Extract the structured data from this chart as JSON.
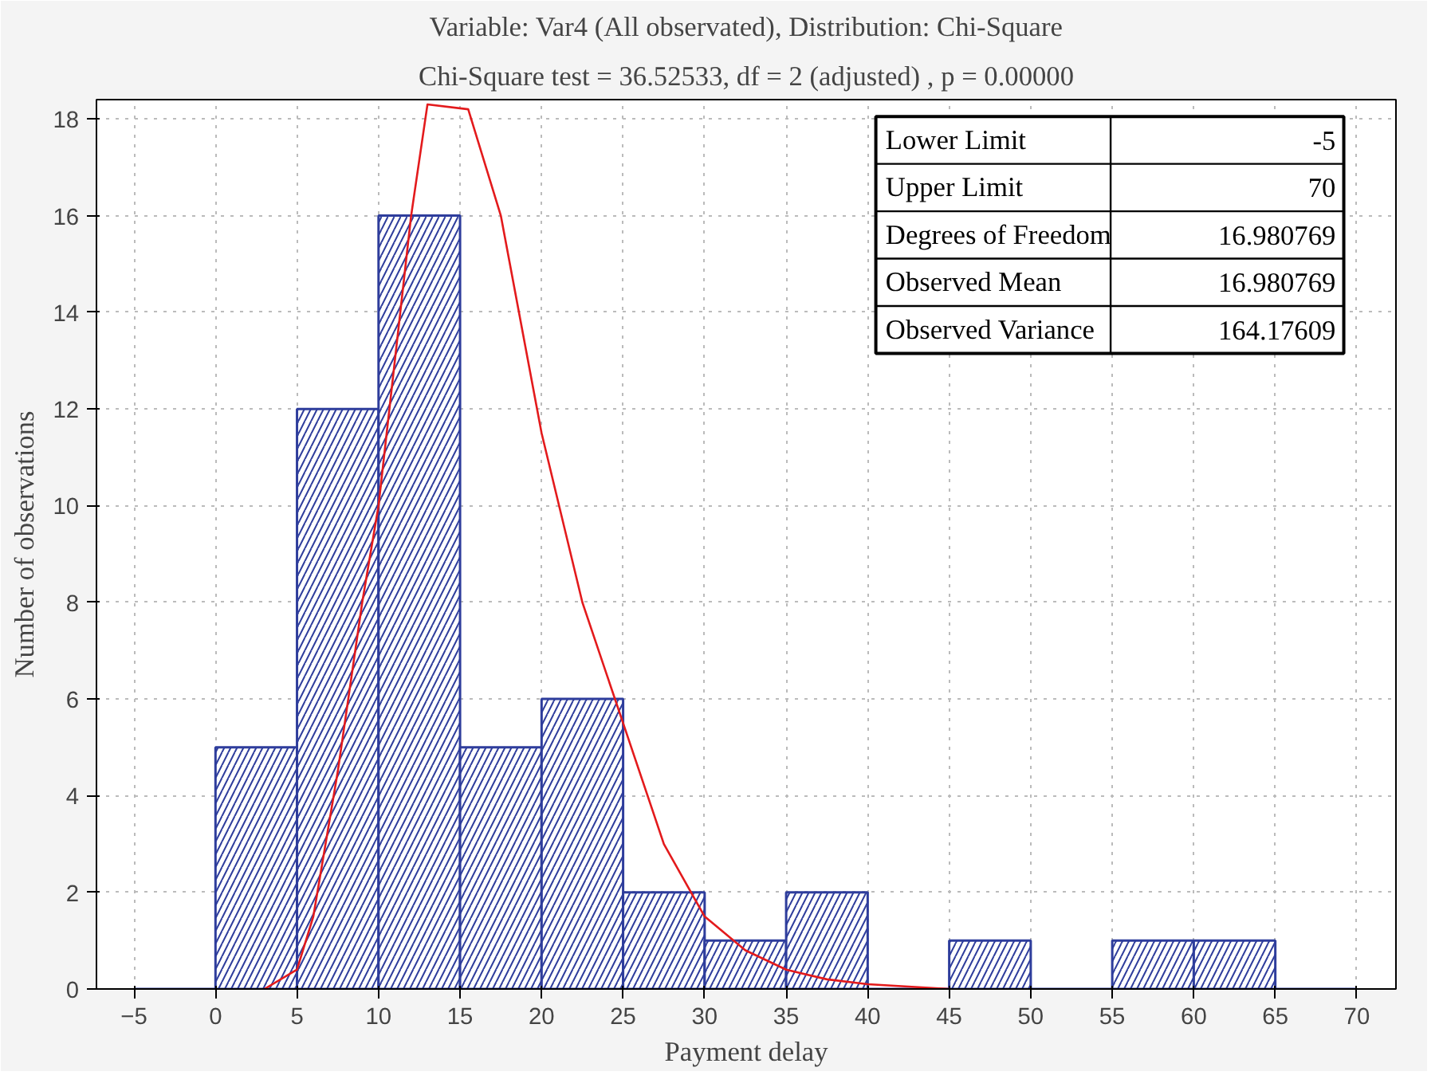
{
  "chart_data": {
    "type": "histogram",
    "title": "Variable: Var4 (All observated), Distribution: Chi-Square",
    "subtitle": "Chi-Square test = 36.52533, df = 2 (adjusted) , p = 0.00000",
    "xlabel": "Payment delay",
    "ylabel": "Number of observations",
    "bins": [
      -5,
      0,
      5,
      10,
      15,
      20,
      25,
      30,
      35,
      40,
      45,
      50,
      55,
      60,
      65,
      70
    ],
    "values": [
      0,
      5,
      12,
      16,
      5,
      6,
      2,
      1,
      2,
      0,
      1,
      0,
      1,
      1,
      0
    ],
    "color": "#2e3d9c",
    "series": [
      {
        "type": "line",
        "color": "#e31a1c",
        "x": [
          3,
          5,
          6,
          7.5,
          9,
          10,
          11,
          12,
          13,
          15.5,
          17.5,
          20,
          22.5,
          25,
          27.5,
          30,
          32.5,
          35,
          37.5,
          40,
          45
        ],
        "values": [
          0,
          0.4,
          1.5,
          4.5,
          8,
          10,
          13,
          16,
          18.3,
          18.2,
          16,
          11.5,
          8,
          5.5,
          3,
          1.5,
          0.8,
          0.4,
          0.2,
          0.1,
          0
        ]
      }
    ],
    "annotations": [
      "Lower Limit",
      "-5",
      "Upper Limit",
      "70",
      "Degrees of Freedom",
      "16.980769",
      "Observed Mean",
      "16.980769",
      "Observed Variance",
      "164.17609"
    ],
    "xlim": [
      -7.3,
      72.4
    ],
    "ylim": [
      0,
      18.4
    ],
    "xticks": [
      -5,
      0,
      5,
      10,
      15,
      20,
      25,
      30,
      35,
      40,
      45,
      50,
      55,
      60,
      65,
      70
    ],
    "yticks": [
      0,
      2,
      4,
      6,
      8,
      10,
      12,
      14,
      16,
      18
    ],
    "grid": true
  }
}
